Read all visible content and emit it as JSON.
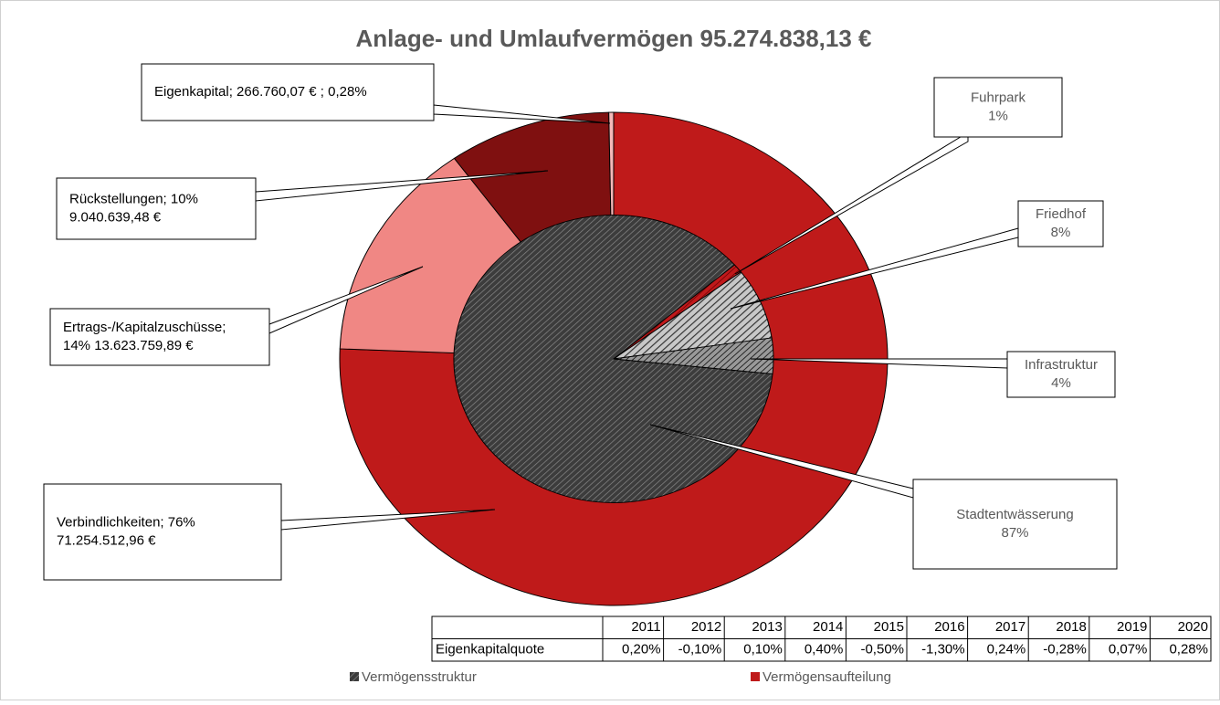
{
  "chart_data": {
    "type": "pie",
    "title": "Anlage- und Umlaufvermögen   95.274.838,13 €",
    "series": [
      {
        "name": "Vermögensaufteilung",
        "color": "#bf1a1a",
        "colors": [
          "#bf1a1a",
          "#f08784",
          "#7f1010",
          "#f4b8b8"
        ],
        "values": [
          71254512.96,
          13623759.89,
          9040639.48,
          266760.07
        ],
        "value_labels": [
          [
            "Verbindlichkeiten; 76%",
            "71.254.512,96 €"
          ],
          [
            "Ertrags-/Kapitalzuschüsse;",
            "14% 13.623.759,89 €"
          ],
          [
            "Rückstellungen; 10%",
            "9.040.639,48 €"
          ],
          [
            "Eigenkapital;  266.760,07 € ; 0,28%"
          ]
        ]
      },
      {
        "name": "Vermögensstruktur",
        "color": "#555555",
        "colors": [
          "#4a4a4a",
          "#c0191b",
          "#8a8a8a",
          "#6a6a6a"
        ],
        "categories": [
          "Stadtentwässerung",
          "Fuhrpark",
          "Friedhof",
          "Infrastruktur"
        ],
        "values": [
          87,
          1,
          8,
          4
        ],
        "value_labels": [
          "87%",
          "1%",
          "8%",
          "4%"
        ]
      }
    ],
    "table": {
      "columns": [
        2011,
        2012,
        2013,
        2014,
        2015,
        2016,
        2017,
        2018,
        2019,
        2020
      ],
      "row_label": "Eigenkapitalquote",
      "values": [
        0.2,
        -0.1,
        0.1,
        0.4,
        -0.5,
        -1.3,
        0.24,
        -0.28,
        0.07,
        0.28
      ],
      "value_labels": [
        "0,20%",
        "-0,10%",
        "0,10%",
        "0,40%",
        "-0,50%",
        "-1,30%",
        "0,24%",
        "-0,28%",
        "0,07%",
        "0,28%"
      ]
    }
  }
}
